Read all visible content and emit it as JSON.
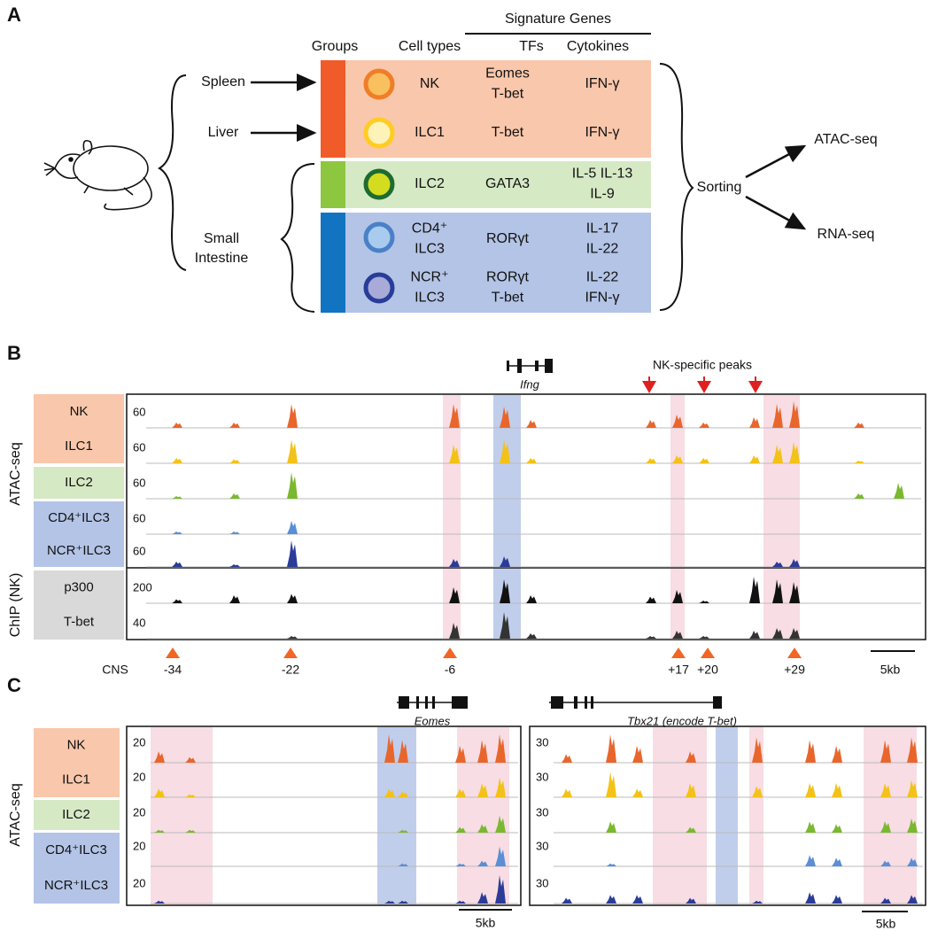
{
  "panel_a": {
    "label": "A",
    "headers": {
      "signature_genes": "Signature Genes",
      "groups": "Groups",
      "cell_types": "Cell types",
      "tfs": "TFs",
      "cytokines": "Cytokines"
    },
    "sources": {
      "spleen": "Spleen",
      "liver": "Liver",
      "small_intestine": [
        "Small",
        "Intestine"
      ]
    },
    "rows": [
      {
        "cell_type": [
          "NK"
        ],
        "tfs": [
          "Eomes",
          "T-bet"
        ],
        "cytokines": [
          "IFN-γ"
        ]
      },
      {
        "cell_type": [
          "ILC1"
        ],
        "tfs": [
          "T-bet"
        ],
        "cytokines": [
          "IFN-γ"
        ]
      },
      {
        "cell_type": [
          "ILC2"
        ],
        "tfs": [
          "GATA3"
        ],
        "cytokines": [
          "IL-5 IL-13",
          "IL-9"
        ]
      },
      {
        "cell_type": [
          "CD4⁺",
          "ILC3"
        ],
        "tfs": [
          "RORγt"
        ],
        "cytokines": [
          "IL-17",
          "IL-22"
        ]
      },
      {
        "cell_type": [
          "NCR⁺",
          "ILC3"
        ],
        "tfs": [
          "RORγt",
          "T-bet"
        ],
        "cytokines": [
          "IL-22",
          "IFN-γ"
        ]
      }
    ],
    "sorting": "Sorting",
    "outputs": [
      "ATAC-seq",
      "RNA-seq"
    ]
  },
  "panel_b": {
    "label": "B",
    "gene": "Ifng",
    "annotation": "NK-specific peaks",
    "assay_labels": [
      "ATAC-seq",
      "ChIP (NK)"
    ],
    "tracks": [
      {
        "label": "NK",
        "scale": "60"
      },
      {
        "label": "ILC1",
        "scale": "60"
      },
      {
        "label": "ILC2",
        "scale": "60"
      },
      {
        "label": "CD4⁺ILC3",
        "scale": "60"
      },
      {
        "label": "NCR⁺ILC3",
        "scale": "60"
      },
      {
        "label": "p300",
        "scale": "200"
      },
      {
        "label": "T-bet",
        "scale": "40"
      }
    ],
    "cns_label": "CNS",
    "cns": [
      "-34",
      "-22",
      "-6",
      "+17",
      "+20",
      "+29"
    ],
    "scale_bar": "5kb"
  },
  "panel_c": {
    "label": "C",
    "genes": [
      "Eomes",
      "Tbx21 (encode T-bet)"
    ],
    "assay_label": "ATAC-seq",
    "tracks": [
      "NK",
      "ILC1",
      "ILC2",
      "CD4⁺ILC3",
      "NCR⁺ILC3"
    ],
    "left_scales": [
      "20",
      "20",
      "20",
      "20",
      "20"
    ],
    "right_scales": [
      "30",
      "30",
      "30",
      "30",
      "30"
    ],
    "scale_bars": [
      "5kb",
      "5kb"
    ]
  }
}
